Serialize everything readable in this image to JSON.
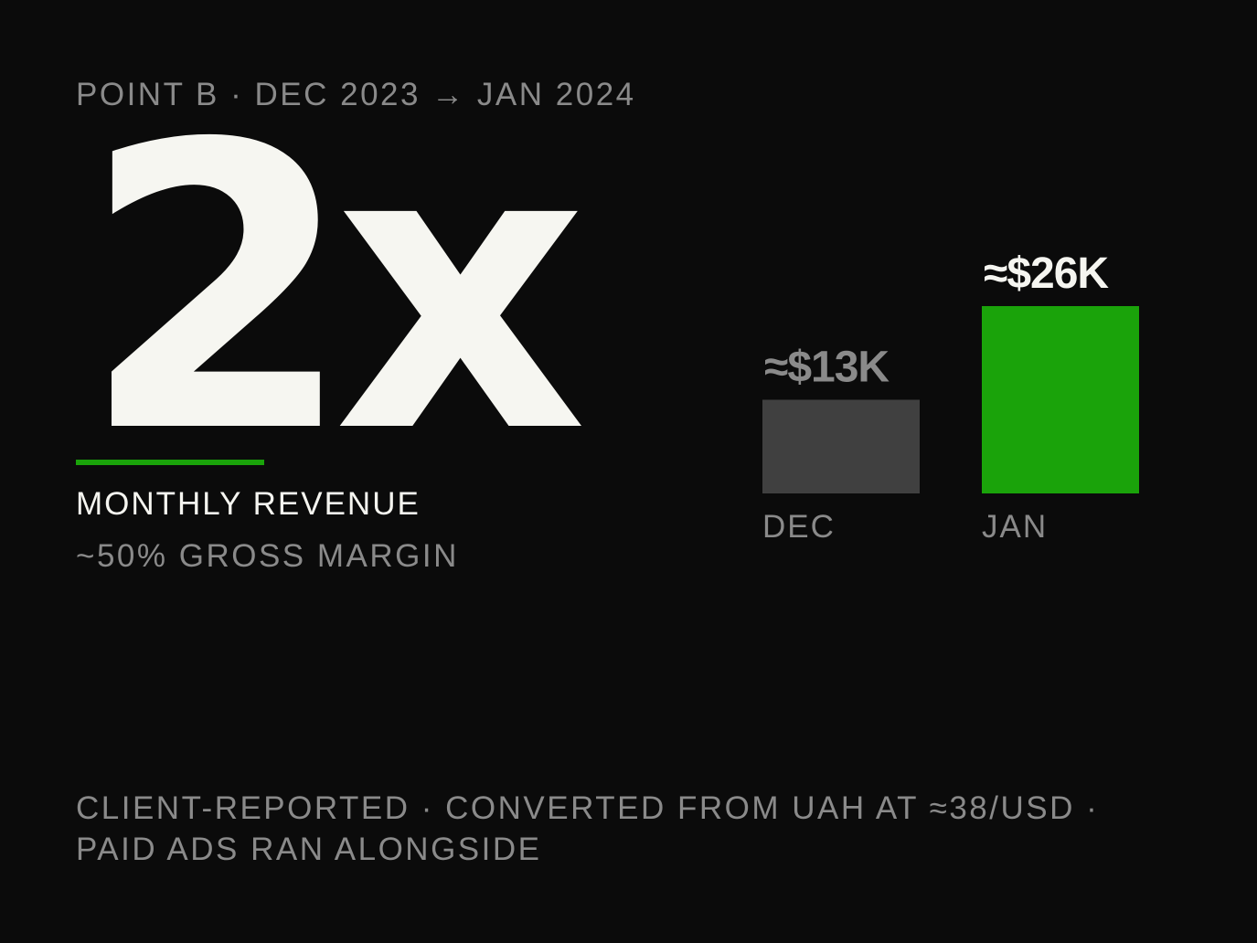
{
  "header": {
    "eyebrow": "POINT B · DEC 2023 → JAN 2024"
  },
  "hero": {
    "multiplier": "2x",
    "metric_label": "MONTHLY REVENUE",
    "submetric": "~50% GROSS MARGIN"
  },
  "footnote": {
    "line1": "CLIENT-REPORTED · CONVERTED FROM UAH AT ≈38/USD ·",
    "line2": "PAID ADS RAN ALONGSIDE"
  },
  "colors": {
    "accent": "#1aa30a",
    "muted_bar": "#404040",
    "background": "#0b0b0b",
    "text_primary": "#f5f5f0",
    "text_muted": "#8a8a8a"
  },
  "chart_data": {
    "type": "bar",
    "categories": [
      "DEC",
      "JAN"
    ],
    "values": [
      13,
      26
    ],
    "value_labels": [
      "≈$13K",
      "≈$26K"
    ],
    "unit": "$K",
    "title": "",
    "xlabel": "",
    "ylabel": "",
    "grid": false,
    "bar_colors": [
      "#404040",
      "#1aa30a"
    ],
    "label_colors": [
      "#8a8a8a",
      "#f5f5f0"
    ]
  }
}
